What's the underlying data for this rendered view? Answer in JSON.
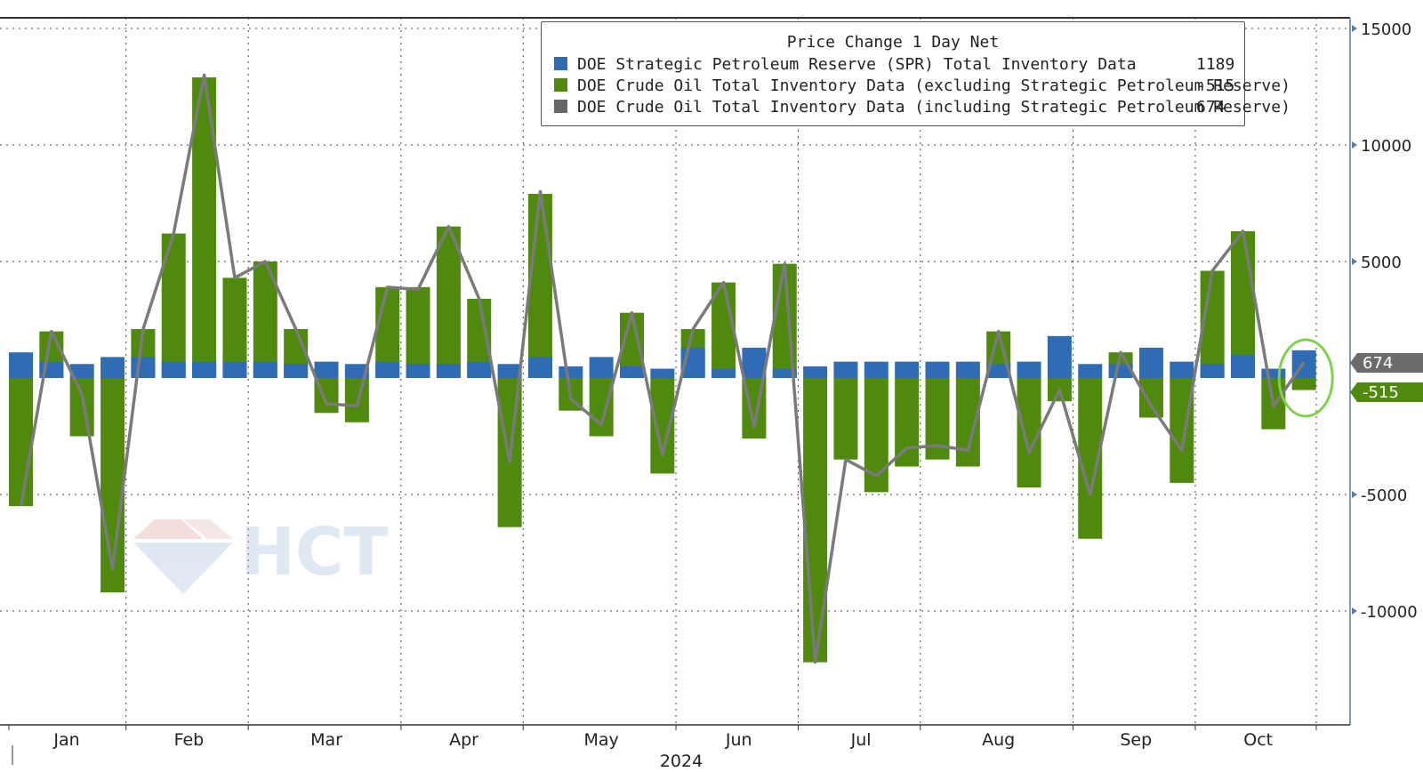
{
  "chart_data": {
    "type": "bar",
    "title": "",
    "year_label": "2024",
    "yaxis": {
      "position": "right",
      "ticks": [
        15000,
        10000,
        5000,
        -5000,
        -10000
      ],
      "ylim": [
        -15000,
        15000
      ]
    },
    "months": [
      "Jan",
      "Feb",
      "Mar",
      "Apr",
      "May",
      "Jun",
      "Jul",
      "Aug",
      "Sep",
      "Oct"
    ],
    "grid": true,
    "legend_placement": "top-right",
    "legend": {
      "title": "Price Change 1 Day Net",
      "entries": [
        {
          "name": "DOE Strategic Petroleum Reserve (SPR) Total Inventory Data",
          "value": "1189",
          "color": "#2f6cb5"
        },
        {
          "name": "DOE Crude Oil Total Inventory Data (excluding Strategic Petroleum Reserve)",
          "value": "-515",
          "color": "#4f8a0f"
        },
        {
          "name": "DOE Crude Oil Total Inventory Data (including Strategic Petroleum Reserve)",
          "value": "674",
          "color": "#666666"
        }
      ]
    },
    "last_value_labels": [
      {
        "text": "674",
        "value": 674,
        "color": "#6b6b6b"
      },
      {
        "text": "-515",
        "value": -515,
        "color": "#4f8a0f"
      }
    ],
    "series": [
      {
        "name": "DOE Strategic Petroleum Reserve (SPR) Total Inventory Data",
        "type": "bar",
        "color": "#2f6cb5",
        "values": [
          1100,
          700,
          600,
          900,
          900,
          700,
          700,
          700,
          700,
          600,
          700,
          600,
          700,
          600,
          600,
          700,
          600,
          900,
          500,
          900,
          500,
          400,
          1300,
          400,
          1300,
          400,
          500,
          700,
          700,
          700,
          700,
          700,
          600,
          700,
          1800,
          600,
          600,
          1300,
          700,
          600,
          1000,
          400,
          1189
        ]
      },
      {
        "name": "DOE Crude Oil Total Inventory Data (excluding Strategic Petroleum Reserve)",
        "type": "bar",
        "color": "#4f8a0f",
        "values": [
          -5500,
          2000,
          -2500,
          -9200,
          2100,
          6200,
          12900,
          4300,
          5000,
          2100,
          -1500,
          -1900,
          3900,
          3900,
          6500,
          3400,
          -6400,
          7900,
          -1400,
          -2500,
          2800,
          -4100,
          2100,
          4100,
          -2600,
          4900,
          -12200,
          -3500,
          -4900,
          -3800,
          -3500,
          -3800,
          2000,
          -4700,
          -1000,
          -6900,
          1100,
          -1700,
          -4500,
          4600,
          6300,
          -2200,
          -515
        ]
      },
      {
        "name": "DOE Crude Oil Total Inventory Data (including Strategic Petroleum Reserve)",
        "type": "line",
        "color": "#7a7a7a",
        "values": [
          -5500,
          2000,
          -700,
          -8200,
          2100,
          6200,
          13000,
          4300,
          5000,
          2100,
          -1100,
          -1200,
          3900,
          3800,
          6500,
          3400,
          -3600,
          8000,
          -900,
          -2000,
          2800,
          -3300,
          2100,
          4100,
          -2100,
          4900,
          -12200,
          -3500,
          -4200,
          -3000,
          -2900,
          -3100,
          2000,
          -3200,
          -500,
          -5000,
          1100,
          -1200,
          -3100,
          4600,
          6300,
          -1200,
          674
        ]
      }
    ]
  }
}
